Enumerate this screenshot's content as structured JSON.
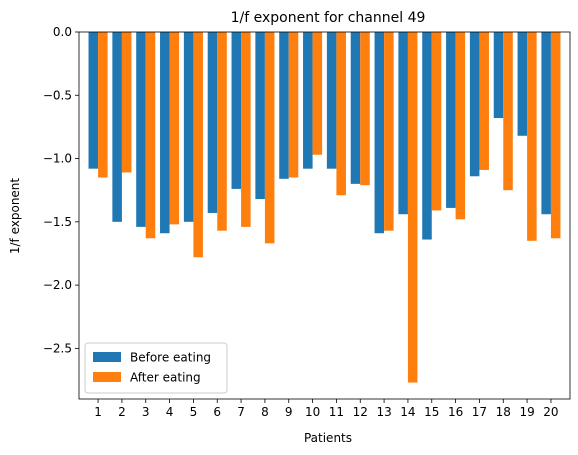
{
  "chart_data": {
    "type": "bar",
    "title": "1/f exponent for channel 49",
    "xlabel": "Patients",
    "ylabel": "1/f exponent",
    "categories": [
      "1",
      "2",
      "3",
      "4",
      "5",
      "6",
      "7",
      "8",
      "9",
      "10",
      "11",
      "12",
      "13",
      "14",
      "15",
      "16",
      "17",
      "18",
      "19",
      "20"
    ],
    "series": [
      {
        "name": "Before eating",
        "color": "#1f77b4",
        "values": [
          -1.08,
          -1.5,
          -1.54,
          -1.59,
          -1.5,
          -1.43,
          -1.24,
          -1.32,
          -1.16,
          -1.08,
          -1.08,
          -1.2,
          -1.59,
          -1.44,
          -1.64,
          -1.39,
          -1.14,
          -0.68,
          -0.82,
          -1.44
        ]
      },
      {
        "name": "After eating",
        "color": "#ff7f0e",
        "values": [
          -1.15,
          -1.11,
          -1.63,
          -1.52,
          -1.78,
          -1.57,
          -1.54,
          -1.67,
          -1.15,
          -0.97,
          -1.29,
          -1.21,
          -1.57,
          -2.77,
          -1.41,
          -1.48,
          -1.09,
          -1.25,
          -1.65,
          -1.63
        ]
      }
    ],
    "ylim": [
      -2.9,
      0.0
    ],
    "yticks": [
      0.0,
      -0.5,
      -1.0,
      -1.5,
      -2.0,
      -2.5
    ],
    "ytick_labels": [
      "0.0",
      "−0.5",
      "−1.0",
      "−1.5",
      "−2.0",
      "−2.5"
    ],
    "legend_position": "lower-left",
    "grid": false
  }
}
